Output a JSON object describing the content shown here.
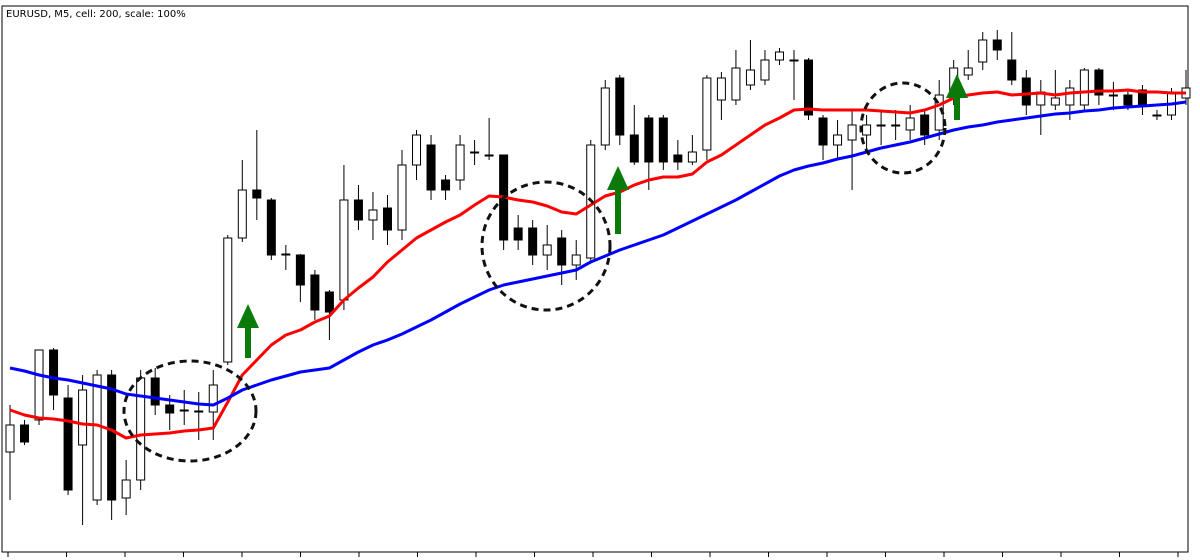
{
  "chart_data": {
    "type": "candlestick",
    "title": "EURUSD, M5, cell: 200, scale: 100%",
    "open": [
      108,
      135,
      140,
      210,
      162,
      115,
      60,
      185,
      62,
      80,
      182,
      155,
      150,
      148,
      148,
      198,
      322,
      370,
      360,
      305,
      305,
      285,
      268,
      260,
      360,
      340,
      352,
      330,
      395,
      415,
      380,
      380,
      408,
      405,
      405,
      332,
      332,
      305,
      322,
      295,
      302,
      415,
      482,
      425,
      442,
      442,
      405,
      398,
      410,
      460,
      460,
      475,
      480,
      500,
      500,
      500,
      442,
      415,
      420,
      425,
      435,
      435,
      430,
      445,
      430,
      462,
      485,
      498,
      520,
      500,
      482,
      455,
      455,
      455,
      455,
      490,
      465,
      465,
      470,
      445,
      445,
      462
    ],
    "high": [
      155,
      140,
      210,
      212,
      175,
      185,
      190,
      190,
      100,
      190,
      192,
      165,
      170,
      168,
      190,
      325,
      400,
      430,
      362,
      315,
      306,
      290,
      270,
      395,
      375,
      368,
      365,
      410,
      430,
      425,
      385,
      425,
      420,
      442,
      405,
      345,
      340,
      335,
      330,
      320,
      420,
      480,
      485,
      455,
      445,
      445,
      420,
      425,
      485,
      488,
      510,
      520,
      510,
      512,
      510,
      502,
      445,
      440,
      450,
      445,
      450,
      450,
      455,
      450,
      480,
      500,
      510,
      528,
      530,
      528,
      490,
      480,
      490,
      480,
      492,
      492,
      478,
      470,
      475,
      450,
      472,
      490
    ],
    "low": [
      60,
      115,
      135,
      150,
      65,
      35,
      55,
      40,
      45,
      70,
      145,
      130,
      135,
      120,
      120,
      195,
      318,
      340,
      300,
      290,
      258,
      240,
      220,
      250,
      330,
      320,
      315,
      320,
      380,
      360,
      360,
      370,
      395,
      400,
      310,
      310,
      295,
      290,
      275,
      280,
      298,
      410,
      415,
      395,
      370,
      390,
      390,
      395,
      400,
      440,
      455,
      470,
      475,
      495,
      460,
      440,
      400,
      400,
      370,
      410,
      415,
      420,
      420,
      415,
      420,
      455,
      480,
      490,
      500,
      475,
      445,
      425,
      450,
      440,
      450,
      455,
      450,
      450,
      445,
      440,
      440,
      455
    ],
    "close": [
      135,
      118,
      210,
      165,
      70,
      170,
      185,
      60,
      80,
      182,
      155,
      147,
      150,
      149,
      175,
      322,
      370,
      362,
      305,
      306,
      275,
      250,
      248,
      360,
      340,
      350,
      330,
      395,
      425,
      370,
      370,
      415,
      407,
      405,
      320,
      320,
      305,
      315,
      295,
      305,
      415,
      472,
      425,
      398,
      398,
      398,
      398,
      408,
      482,
      482,
      492,
      490,
      500,
      508,
      500,
      445,
      415,
      425,
      435,
      435,
      435,
      435,
      442,
      425,
      465,
      492,
      492,
      520,
      510,
      480,
      455,
      468,
      462,
      472,
      490,
      465,
      465,
      455,
      455,
      445,
      468,
      472
    ],
    "up_color": "#ffffff",
    "down_color": "#000000",
    "overlays": [
      {
        "color": "#ff0000",
        "values": [
          150,
          145,
          142,
          141,
          139,
          136,
          135,
          130,
          122,
          125,
          126,
          127,
          129,
          130,
          132,
          158,
          185,
          200,
          215,
          225,
          230,
          238,
          244,
          260,
          272,
          283,
          298,
          310,
          322,
          330,
          338,
          345,
          355,
          364,
          363,
          360,
          358,
          354,
          348,
          346,
          355,
          364,
          368,
          375,
          380,
          383,
          383,
          386,
          398,
          405,
          415,
          425,
          435,
          442,
          450,
          451,
          450,
          450,
          450,
          450,
          449,
          448,
          447,
          450,
          455,
          462,
          465,
          467,
          468,
          465,
          466,
          467,
          465,
          467,
          468,
          469,
          469,
          470,
          468,
          468,
          467,
          467
        ]
      },
      {
        "color": "#0000ff",
        "values": [
          192,
          189,
          185,
          182,
          180,
          177,
          174,
          171,
          166,
          164,
          162,
          160,
          158,
          156,
          155,
          162,
          170,
          175,
          180,
          184,
          188,
          190,
          192,
          200,
          208,
          215,
          220,
          226,
          233,
          240,
          248,
          256,
          263,
          270,
          275,
          278,
          281,
          284,
          287,
          290,
          298,
          304,
          310,
          315,
          320,
          325,
          332,
          339,
          346,
          353,
          360,
          368,
          376,
          384,
          390,
          394,
          397,
          401,
          404,
          408,
          412,
          415,
          418,
          422,
          426,
          430,
          433,
          435,
          438,
          440,
          442,
          444,
          446,
          447,
          449,
          450,
          452,
          453,
          454,
          455,
          456,
          458
        ]
      }
    ],
    "ylim": [
      0,
      560
    ]
  }
}
